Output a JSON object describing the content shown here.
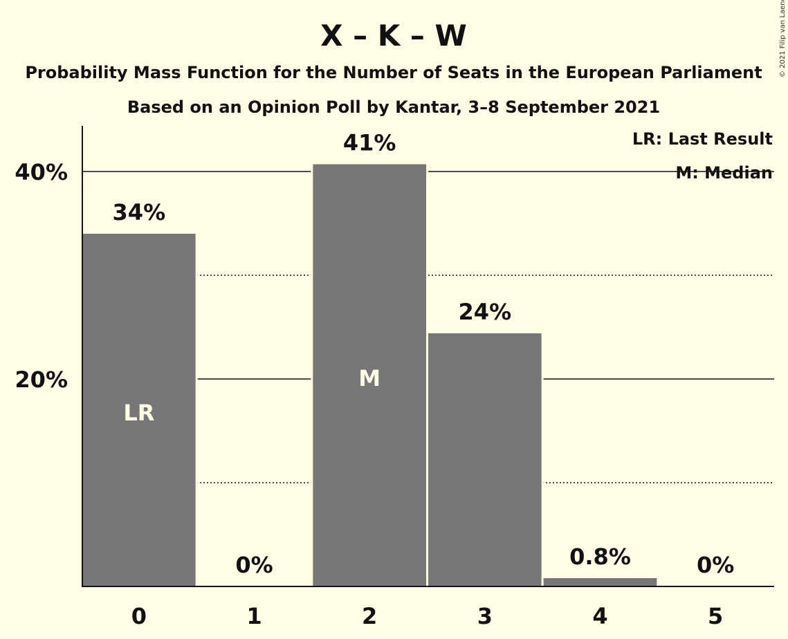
{
  "title": "X – K – W",
  "subtitle": "Probability Mass Function for the Number of Seats in the European Parliament",
  "subtitle2": "Based on an Opinion Poll by Kantar, 3–8 September 2021",
  "copyright": "© 2021 Filip van Laenen",
  "legend": {
    "last_result": "LR: Last Result",
    "median": "M: Median"
  },
  "colors": {
    "background": "#fffde6",
    "bar": "#777777",
    "bar_text": "#fffde6"
  },
  "chart_data": {
    "type": "bar",
    "categories": [
      "0",
      "1",
      "2",
      "3",
      "4",
      "5"
    ],
    "values": [
      34,
      0,
      40.7,
      24.4,
      0.8,
      0
    ],
    "data_labels": [
      "34%",
      "0%",
      "41%",
      "24%",
      "0.8%",
      "0%"
    ],
    "bar_labels": [
      "LR",
      "",
      "M",
      "",
      "",
      ""
    ],
    "ylim": [
      0,
      44.4
    ],
    "yticks": [
      {
        "value": 20,
        "label": "20%"
      },
      {
        "value": 40,
        "label": "40%"
      }
    ],
    "minor_gridlines": [
      10,
      30
    ],
    "xlabel": "",
    "ylabel": "",
    "grid": true,
    "legend_position": "top-right"
  }
}
